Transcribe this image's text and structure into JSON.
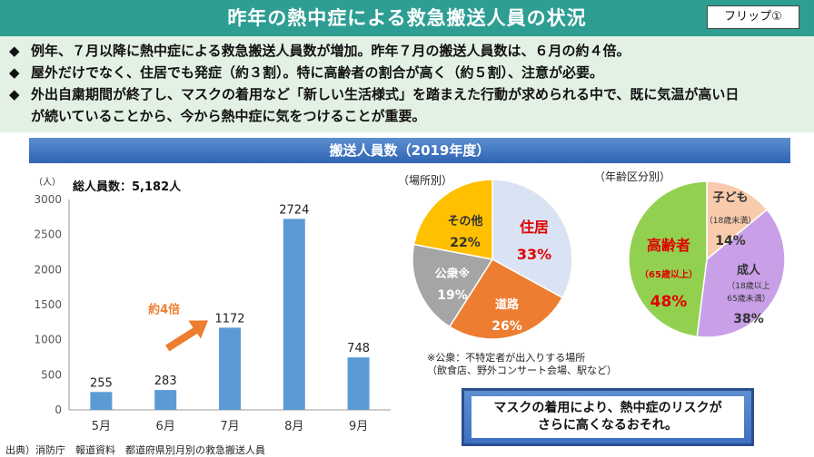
{
  "title": "昨年の熱中症による救急搬送人員の状況",
  "flip_label": "フリップ①",
  "bullets": [
    {
      "marker": "◆",
      "text": "例年、７月以降に熱中症による救急搬送人員数が増加。昨年７月の搬送人員数は、６月の約４倍。"
    },
    {
      "marker": "◆",
      "text": "屋外だけでなく、住居でも発症（約３割）。特に高齢者の割合が高く（約５割）、注意が必要。"
    },
    {
      "marker": "◆",
      "text": "外出自粛期間が終了し、マスクの着用など「新しい生活様式」を踏まえた行動が求められる中で、既に気温が高い日",
      "cont": "が続いていることから、今から熱中症に気をつけることが重要。"
    }
  ],
  "section_title": "搬送人員数（2019年度）",
  "footer_source": "出典）消防庁　報道資料　都道府県別月別の救急搬送人員",
  "pie_place_label": "（場所別）",
  "pie_age_label": "（年齢区分別）",
  "place_note": {
    "line1": "※公衆：不特定者が出入りする場所",
    "line2": "（飲食店、野外コンサート会場、駅など）"
  },
  "callout": {
    "line1": "マスクの着用により、熱中症のリスクが",
    "line2": "さらに高くなるおそれ。"
  },
  "colors": {
    "header": "#2e9e93",
    "bullet_bg": "#e3f1e4",
    "bar": "#5b9bd5",
    "arrow": "#ed7d31",
    "red": "#e00000",
    "place_home": "#dae3f3",
    "place_road": "#ed7d31",
    "place_public": "#a5a5a5",
    "place_other": "#ffc000",
    "age_elderly": "#92d050",
    "age_adult": "#c9a0e8",
    "age_child": "#f8cbad"
  },
  "chart_data": [
    {
      "type": "bar",
      "title": "総人員数：5,182人",
      "ylabel": "（人）",
      "categories": [
        "5月",
        "6月",
        "7月",
        "8月",
        "9月"
      ],
      "values": [
        255,
        283,
        1172,
        2724,
        748
      ],
      "ylim": [
        0,
        3000
      ],
      "yticks": [
        0,
        500,
        1000,
        1500,
        2000,
        2500,
        3000
      ],
      "grid": false,
      "annotation": "約4倍"
    },
    {
      "type": "pie",
      "title": "（場所別）",
      "slices": [
        {
          "label": "住居",
          "value": 33,
          "pct": "33%",
          "sub": ""
        },
        {
          "label": "道路",
          "value": 26,
          "pct": "26%",
          "sub": ""
        },
        {
          "label": "公衆※",
          "value": 19,
          "pct": "19%",
          "sub": ""
        },
        {
          "label": "その他",
          "value": 22,
          "pct": "22%",
          "sub": ""
        }
      ]
    },
    {
      "type": "pie",
      "title": "（年齢区分別）",
      "slices": [
        {
          "label": "子ども",
          "value": 14,
          "pct": "14%",
          "sub": "（18歳未満）"
        },
        {
          "label": "成人",
          "value": 38,
          "pct": "38%",
          "sub": "（18歳以上",
          "sub2": "65歳未満）"
        },
        {
          "label": "高齢者",
          "value": 48,
          "pct": "48%",
          "sub": "（65歳以上）"
        }
      ]
    }
  ]
}
